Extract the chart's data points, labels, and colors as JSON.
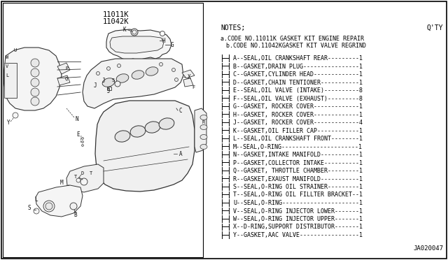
{
  "bg_color": "#ffffff",
  "border_color": "#000000",
  "title_codes": [
    "11011K",
    "11042K"
  ],
  "notes_label": "NOTES;",
  "qty_label": "Q'TY",
  "note_a": "a.CODE NO.11011K GASKET KIT ENGINE REPAIR",
  "note_b": "  b.CODE NO.11042KGASKET KIT VALVE REGRIND",
  "part_list": [
    [
      "A",
      "SEAL,OIL CRANKSHAFT REAR",
      "1"
    ],
    [
      "B",
      "GASKET,DRAIN PLUG",
      "1"
    ],
    [
      "C",
      "GASKET,CYLINDER HEAD",
      "1"
    ],
    [
      "D",
      "GASKET,CHAIN TENTIONER",
      "1"
    ],
    [
      "E",
      "SEAL,OIL VALVE (INTAKE)",
      "8"
    ],
    [
      "F",
      "SEAL,OIL VALVE (EXHAUST)",
      "8"
    ],
    [
      "G",
      "GASKET, ROCKER COVER",
      "1"
    ],
    [
      "H",
      "GASKET, ROCKER COVER",
      "1"
    ],
    [
      "J",
      "GASKET, ROCKER COVER",
      "4"
    ],
    [
      "K",
      "GASKET,OIL FILLER CAP",
      "1"
    ],
    [
      "L",
      "SEAL,OIL CRANKSHAFT FRONT",
      "1"
    ],
    [
      "M",
      "SEAL,O-RING",
      "1"
    ],
    [
      "N",
      "GASKET,INTAKE MANIFOLD",
      "1"
    ],
    [
      "P",
      "GASKET,COLLECTOR INTAKE",
      "1"
    ],
    [
      "Q",
      "GASKET, THROTTLE CHAMBER",
      "1"
    ],
    [
      "R",
      "GASKET,EXAUST MANIFOLD",
      "1"
    ],
    [
      "S",
      "SEAL,O-RING OIL STRAINER",
      "1"
    ],
    [
      "T",
      "SEAL,O-RING OIL FILLTER BRACKET",
      "1"
    ],
    [
      "U",
      "SEAL,O-RING",
      "1"
    ],
    [
      "V",
      "SEAL,O-RING INJECTOR LOWER",
      "1"
    ],
    [
      "W",
      "SEAL,O-RING INJECTOR UPPER",
      "1"
    ],
    [
      "X",
      "D-RING,SUPPORT DISTRIBUTOR",
      "1"
    ],
    [
      "Y",
      "GASKET,AAC VALVE",
      "1"
    ]
  ],
  "diagram_ref": "JA020047",
  "text_color": "#000000",
  "sketch_color": "#333333",
  "font_size_notes": 7.0,
  "font_size_parts": 6.0,
  "font_size_title_code": 7.5,
  "font_size_ref": 6.5
}
